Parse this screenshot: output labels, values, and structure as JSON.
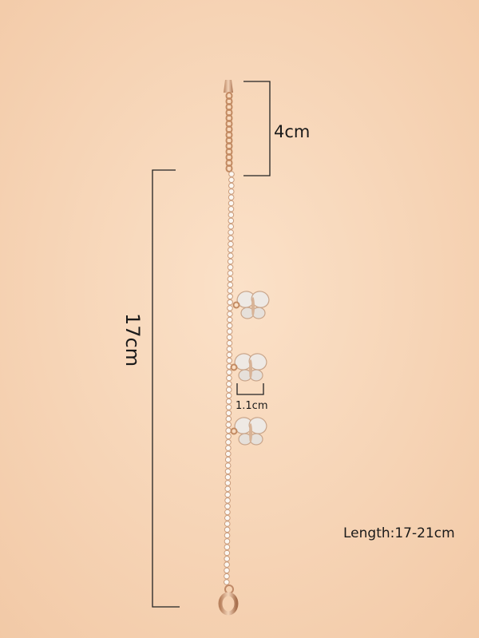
{
  "annotations": {
    "extender_length": "4cm",
    "main_length": "17cm",
    "charm_size": "1.1cm",
    "total_length": "Length:17-21cm"
  }
}
